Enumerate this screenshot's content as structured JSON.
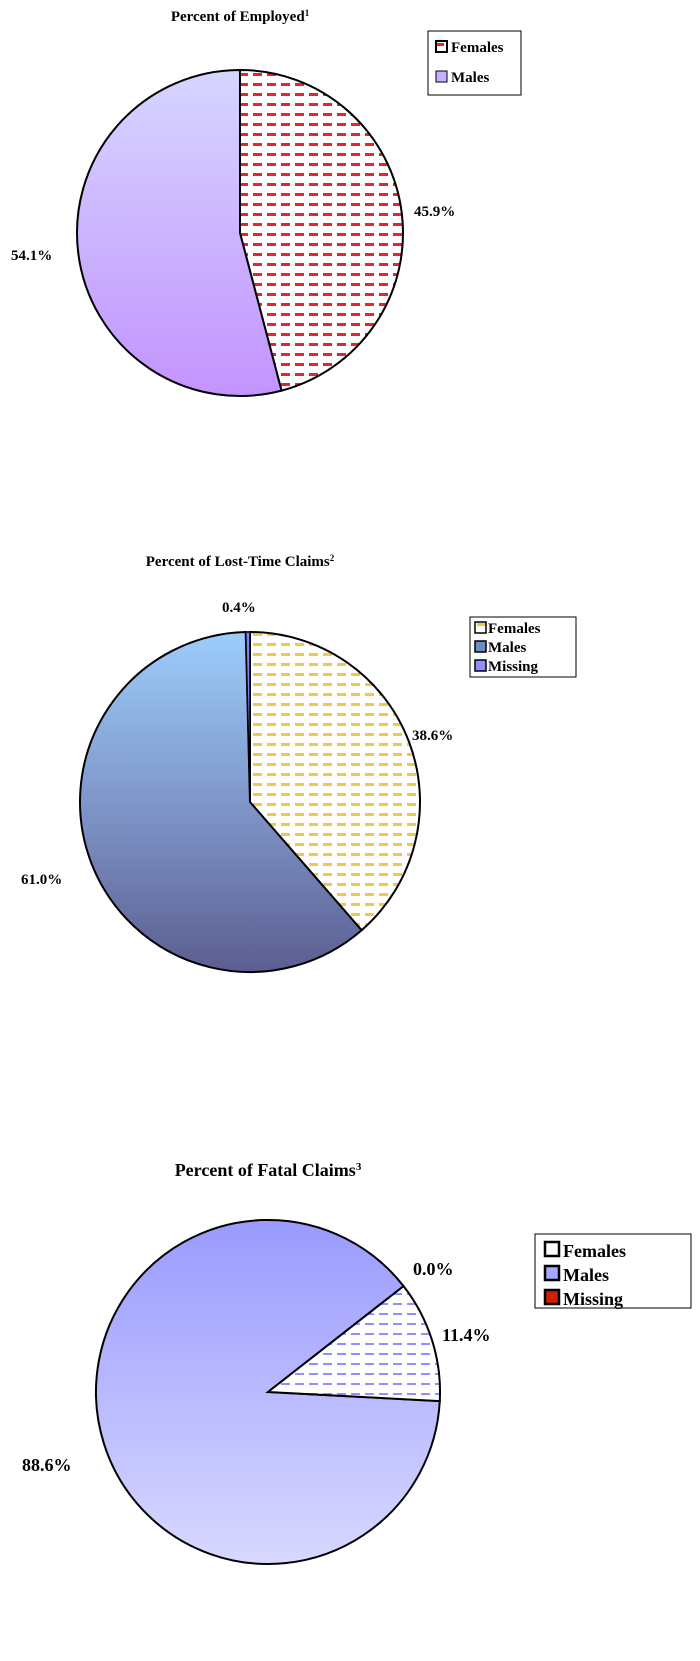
{
  "chart_data": [
    {
      "type": "pie",
      "title": "Percent of Employed",
      "title_superscript": "1",
      "series": [
        {
          "name": "Females",
          "value": 45.9,
          "label": "45.9%"
        },
        {
          "name": "Males",
          "value": 54.1,
          "label": "54.1%"
        }
      ],
      "legend": "top-right",
      "colors": {
        "Females": "#e8242b",
        "Males": "#c79bff"
      }
    },
    {
      "type": "pie",
      "title": "Percent of Lost-Time Claims",
      "title_superscript": "2",
      "series": [
        {
          "name": "Females",
          "value": 38.6,
          "label": "38.6%"
        },
        {
          "name": "Males",
          "value": 61.0,
          "label": "61.0%"
        },
        {
          "name": "Missing",
          "value": 0.4,
          "label": "0.4%"
        }
      ],
      "legend": "top-right",
      "colors": {
        "Females": "#f2c84a",
        "Males": "#8fa9d8",
        "Missing": "#7f7fff"
      }
    },
    {
      "type": "pie",
      "title": "Percent of Fatal Claims",
      "title_superscript": "3",
      "series": [
        {
          "name": "Females",
          "value": 11.4,
          "label": "11.4%"
        },
        {
          "name": "Males",
          "value": 88.6,
          "label": "88.6%"
        },
        {
          "name": "Missing",
          "value": 0.0,
          "label": "0.0%"
        }
      ],
      "legend": "top-right",
      "colors": {
        "Females": "#ffffff",
        "Males": "#a8a8ff",
        "Missing": "#d02000"
      }
    }
  ]
}
